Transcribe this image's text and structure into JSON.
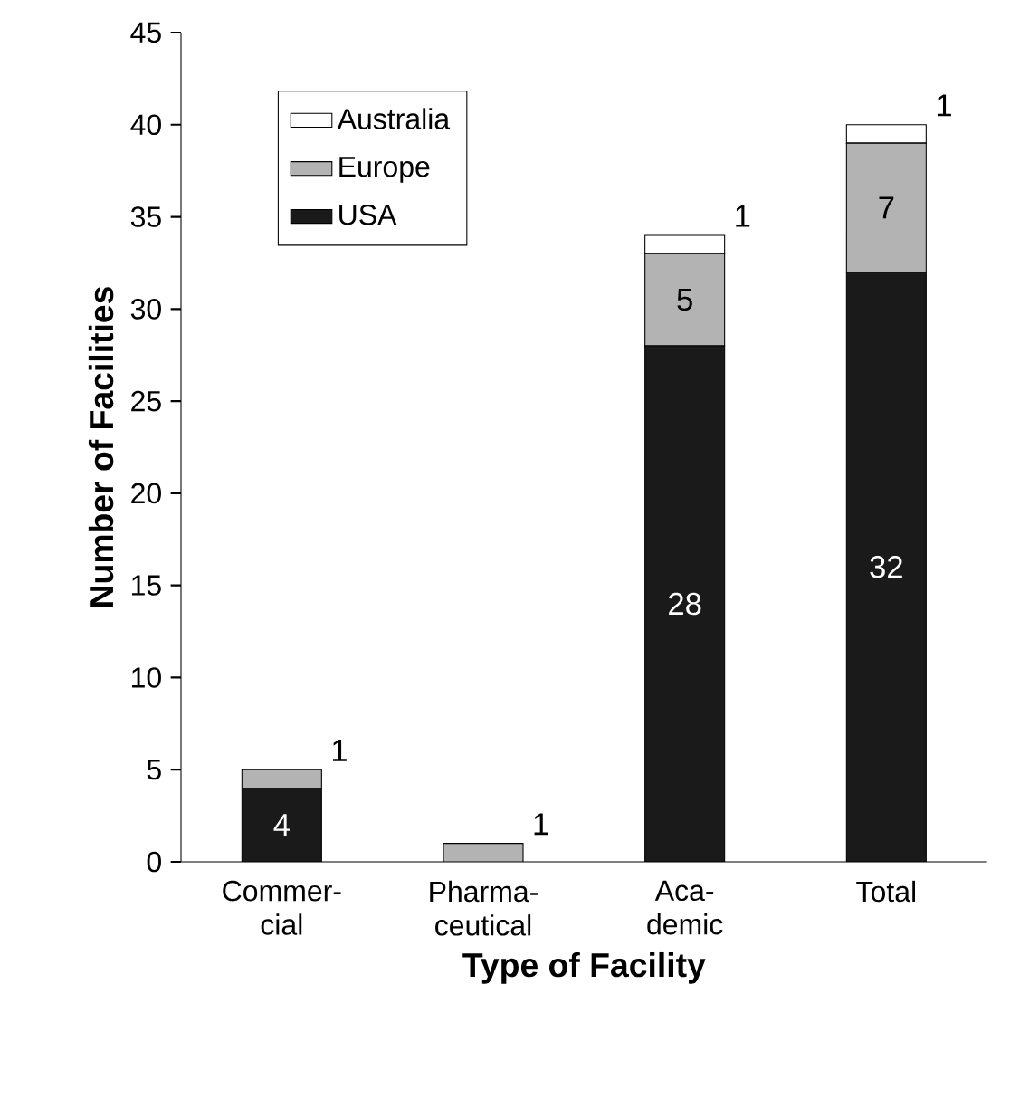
{
  "chart_data": {
    "type": "bar",
    "stacked": true,
    "xlabel": "Type of Facility",
    "ylabel": "Number of Facilities",
    "categories": [
      "Commer-cial",
      "Pharma-ceutical",
      "Aca-demic",
      "Total"
    ],
    "series": [
      {
        "name": "USA",
        "color": "#1a1a1a",
        "values": [
          4,
          0,
          28,
          32
        ],
        "value_labels": [
          "4",
          null,
          "28",
          "32"
        ]
      },
      {
        "name": "Europe",
        "color": "#b3b3b3",
        "values": [
          1,
          1,
          5,
          7
        ],
        "value_labels": [
          "1",
          "1",
          "5",
          "7"
        ]
      },
      {
        "name": "Australia",
        "color": "#ffffff",
        "values": [
          0,
          0,
          1,
          1
        ],
        "value_labels": [
          null,
          null,
          "1",
          "1"
        ]
      }
    ],
    "ylim": [
      0,
      45
    ],
    "yticks": [
      0,
      5,
      10,
      15,
      20,
      25,
      30,
      35,
      40,
      45
    ],
    "legend": "top left",
    "grid": false
  }
}
